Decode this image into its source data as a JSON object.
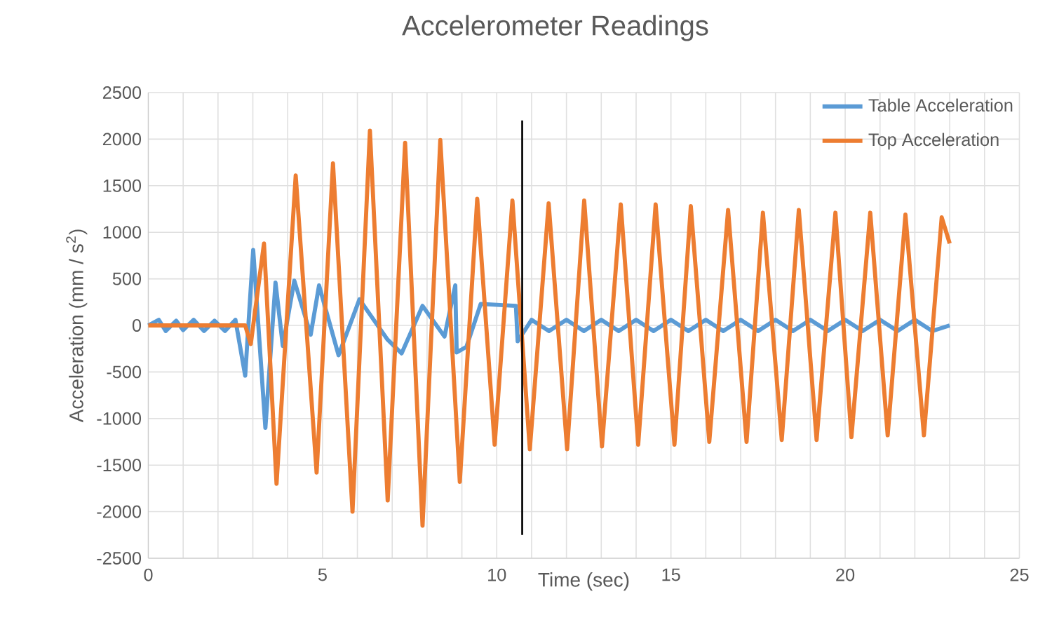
{
  "chart_data": {
    "type": "line",
    "title": "Accelerometer Readings",
    "xlabel": "Time (sec)",
    "ylabel": "Acceleration (mm / s$^{2}$)",
    "xlim": [
      0,
      25
    ],
    "ylim": [
      -2500,
      2500
    ],
    "xticks": [
      0,
      5,
      10,
      15,
      20,
      25
    ],
    "yticks": [
      -2500,
      -2000,
      -1500,
      -1000,
      -500,
      0,
      500,
      1000,
      1500,
      2000,
      2500
    ],
    "grid": true,
    "legend": "top right",
    "marker": "none",
    "line_style": "solid",
    "ref_lines": [
      {
        "axis": "x",
        "value": 10.73,
        "color": "#000000"
      }
    ],
    "series": [
      {
        "name": "Table Acceleration",
        "color": "#5b9bd5",
        "x": [
          0,
          0.3,
          0.5,
          0.8,
          1.0,
          1.3,
          1.6,
          1.9,
          2.2,
          2.5,
          2.78,
          3.01,
          3.36,
          3.65,
          3.86,
          4.19,
          4.66,
          4.9,
          5.46,
          6.06,
          6.86,
          7.27,
          7.87,
          8.5,
          8.81,
          8.85,
          9.13,
          9.54,
          10.55,
          10.6,
          11.0,
          11.5,
          12.0,
          12.5,
          13.0,
          13.5,
          14.0,
          14.5,
          15.0,
          15.5,
          16.0,
          16.5,
          17.0,
          17.5,
          18.0,
          18.5,
          19.0,
          19.5,
          20.0,
          20.5,
          21.0,
          21.5,
          22.0,
          22.5,
          23.0
        ],
        "values": [
          0,
          60,
          -60,
          50,
          -50,
          60,
          -60,
          50,
          -60,
          60,
          -540,
          810,
          -1100,
          460,
          -220,
          480,
          -100,
          430,
          -320,
          280,
          -150,
          -300,
          210,
          -120,
          430,
          -290,
          -230,
          230,
          210,
          -170,
          60,
          -60,
          60,
          -60,
          60,
          -60,
          60,
          -60,
          60,
          -60,
          60,
          -60,
          60,
          -60,
          60,
          -60,
          60,
          -60,
          60,
          -60,
          60,
          -60,
          60,
          -60,
          0
        ]
      },
      {
        "name": "Top Acceleration",
        "color": "#ed7d31",
        "x": [
          0,
          2.78,
          2.94,
          3.32,
          3.68,
          4.23,
          4.83,
          5.3,
          5.86,
          6.36,
          6.87,
          7.37,
          7.87,
          8.38,
          8.94,
          9.44,
          9.94,
          10.45,
          10.95,
          11.49,
          12.02,
          12.51,
          13.02,
          13.56,
          14.06,
          14.56,
          15.1,
          15.57,
          16.1,
          16.64,
          17.17,
          17.64,
          18.18,
          18.67,
          19.18,
          19.72,
          20.18,
          20.72,
          21.22,
          21.73,
          22.26,
          22.77,
          23.0
        ],
        "values": [
          0,
          0,
          -200,
          880,
          -1700,
          1610,
          -1580,
          1740,
          -2000,
          2090,
          -1880,
          1960,
          -2150,
          1990,
          -1680,
          1360,
          -1280,
          1340,
          -1330,
          1310,
          -1330,
          1340,
          -1300,
          1300,
          -1280,
          1300,
          -1280,
          1280,
          -1250,
          1240,
          -1250,
          1210,
          -1230,
          1240,
          -1230,
          1210,
          -1200,
          1210,
          -1180,
          1190,
          -1180,
          1160,
          880
        ]
      }
    ]
  }
}
